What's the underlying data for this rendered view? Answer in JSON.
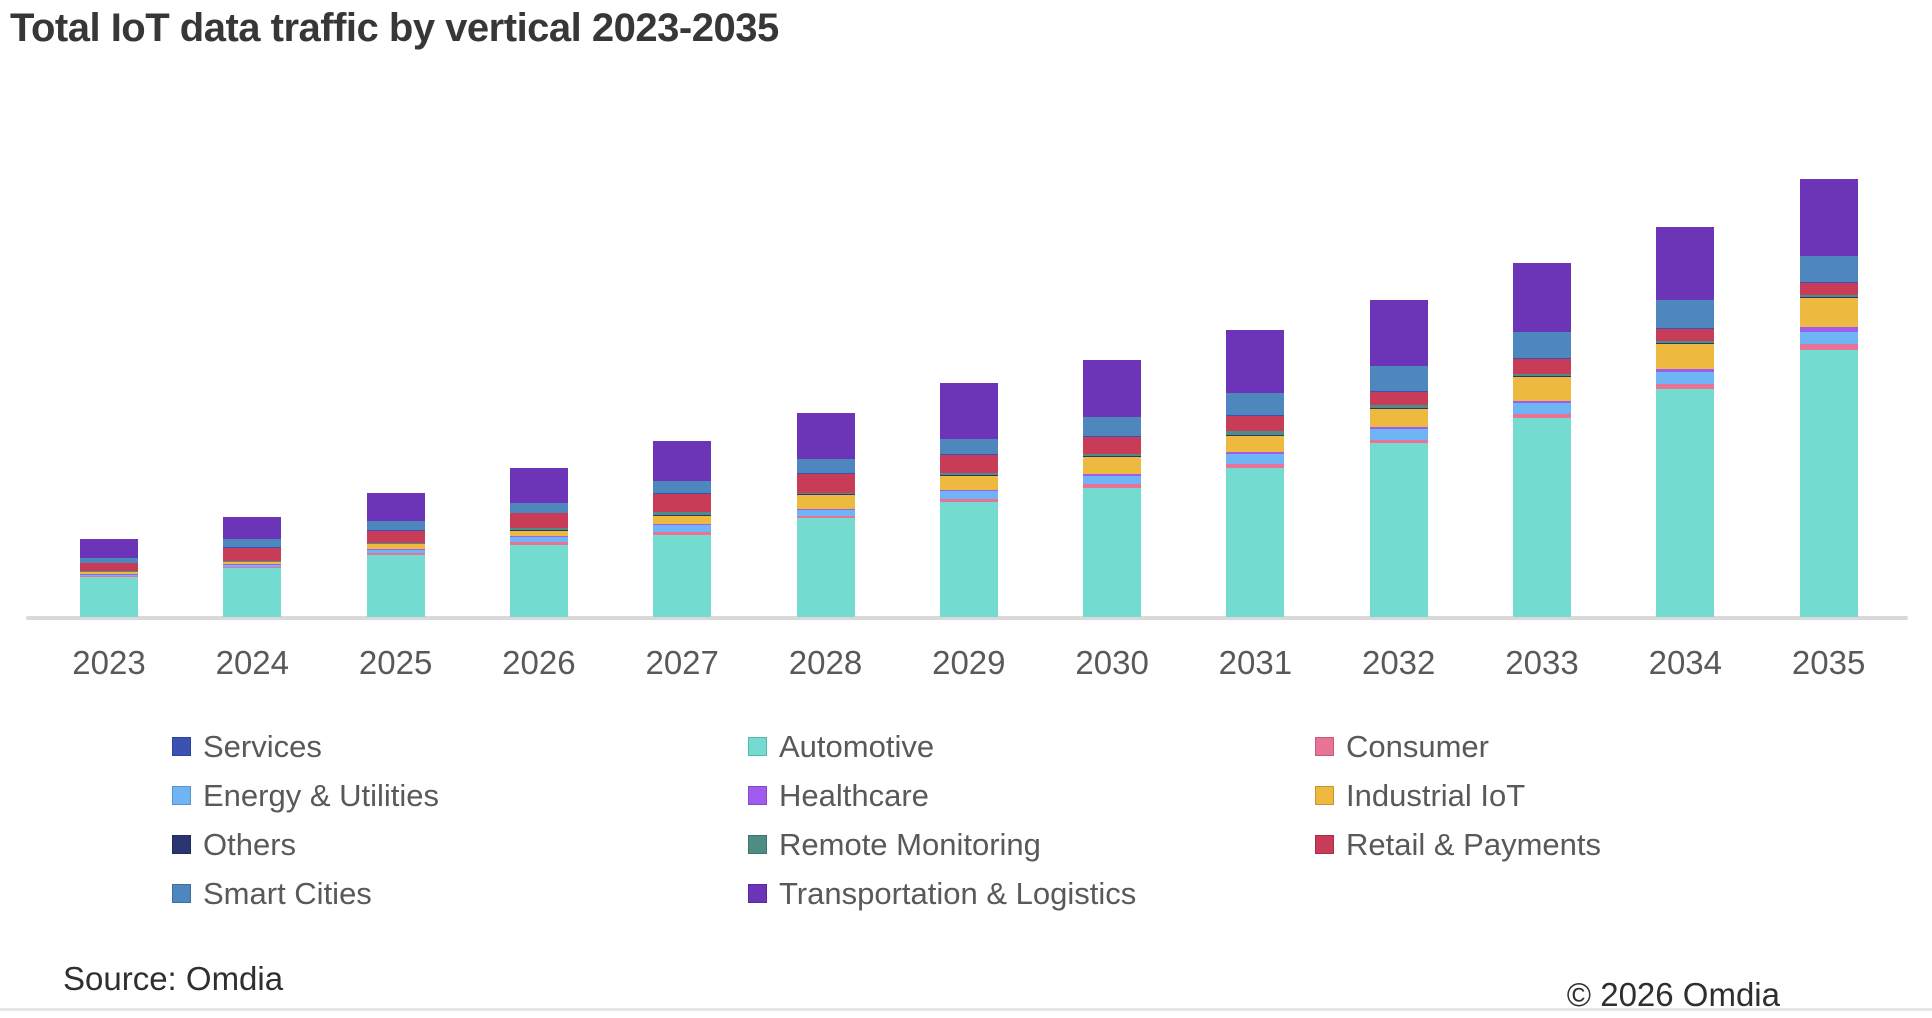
{
  "title": "Total IoT data traffic by vertical 2023-2035",
  "footer": {
    "source": "Source: Omdia",
    "copyright": "© 2026 Omdia"
  },
  "colors": {
    "background": "#ffffff",
    "title_text": "#373737",
    "axis_label": "#595959",
    "legend_label": "#595959",
    "axis_line": "#d9d9d9",
    "footer_text": "#2f2f2f"
  },
  "chart_data": {
    "type": "bar",
    "stacked": true,
    "title": "Total IoT data traffic by vertical 2023-2035",
    "categories": [
      "2023",
      "2024",
      "2025",
      "2026",
      "2027",
      "2028",
      "2029",
      "2030",
      "2031",
      "2032",
      "2033",
      "2034",
      "2035"
    ],
    "units": "relative data traffic (no y-axis scale shown in figure)",
    "ylim": [
      0,
      450
    ],
    "grid": false,
    "legend_position": "bottom",
    "stack_order": "series listed bottom-to-top",
    "series": [
      {
        "name": "Automotive",
        "color": "#73dbcf",
        "values": [
          40,
          49,
          62,
          72,
          82,
          99,
          115,
          129,
          149,
          174,
          199,
          228,
          267
        ]
      },
      {
        "name": "Consumer",
        "color": "#e97394",
        "values": [
          1,
          1,
          2,
          3,
          3,
          2,
          3,
          4,
          4,
          3,
          4,
          5,
          6
        ]
      },
      {
        "name": "Energy & Utilities",
        "color": "#6fb5f5",
        "values": [
          1,
          2,
          3,
          5,
          7,
          6,
          8,
          8,
          10,
          11,
          11,
          12,
          12
        ]
      },
      {
        "name": "Healthcare",
        "color": "#a05cee",
        "values": [
          1,
          1,
          1,
          1,
          1,
          1,
          1,
          2,
          2,
          2,
          2,
          3,
          5
        ]
      },
      {
        "name": "Industrial IoT",
        "color": "#edb93f",
        "values": [
          2,
          2,
          5,
          5,
          8,
          14,
          14,
          17,
          16,
          18,
          24,
          25,
          29
        ]
      },
      {
        "name": "Others",
        "color": "#2a3572",
        "values": [
          0.5,
          0.5,
          0.5,
          1,
          1,
          1,
          1,
          1,
          1,
          1,
          1,
          1,
          1
        ]
      },
      {
        "name": "Remote Monitoring",
        "color": "#4f8c84",
        "values": [
          0.5,
          1,
          1,
          2,
          3,
          1,
          2,
          2,
          4,
          3,
          2,
          2,
          2
        ]
      },
      {
        "name": "Retail & Payments",
        "color": "#c93c58",
        "values": [
          8,
          13,
          12,
          15,
          18,
          19,
          18,
          17,
          15,
          13,
          15,
          12,
          12
        ]
      },
      {
        "name": "Services",
        "color": "#3b52b5",
        "values": [
          0.5,
          0.5,
          0.5,
          0.5,
          1,
          1,
          1,
          1,
          1,
          1,
          1,
          1,
          1
        ]
      },
      {
        "name": "Smart Cities",
        "color": "#4d87bd",
        "values": [
          5,
          8,
          9,
          10,
          12,
          14,
          15,
          19,
          22,
          25,
          26,
          28,
          26
        ]
      },
      {
        "name": "Transportation & Logistics",
        "color": "#6c35b8",
        "values": [
          19,
          22,
          28,
          35,
          40,
          46,
          56,
          57,
          63,
          66,
          69,
          73,
          77
        ]
      }
    ],
    "legend": {
      "columns": [
        [
          "Services",
          "Energy & Utilities",
          "Others",
          "Smart Cities"
        ],
        [
          "Automotive",
          "Healthcare",
          "Remote Monitoring",
          "Transportation & Logistics"
        ],
        [
          "Consumer",
          "Industrial IoT",
          "Retail & Payments"
        ]
      ]
    }
  }
}
